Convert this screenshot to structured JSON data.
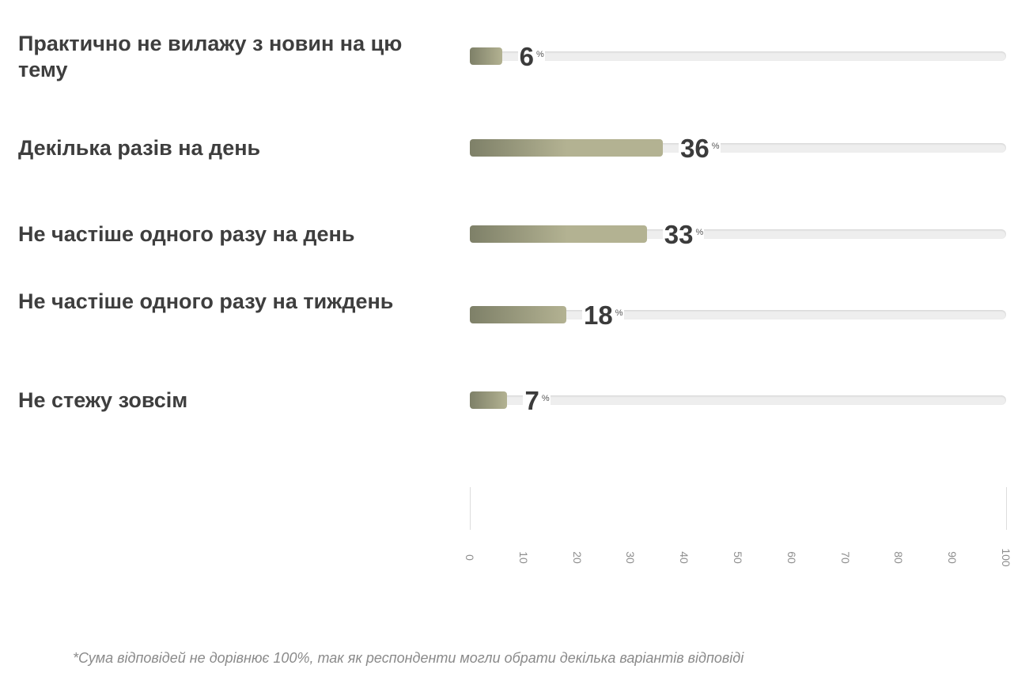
{
  "chart_data": {
    "type": "bar",
    "orientation": "horizontal",
    "categories": [
      "Практично не вилажу з новин на цю тему",
      "Декілька разів на день",
      "Не частіше одного разу на день",
      "Не частіше одного разу на тиждень",
      "Не стежу зовсім"
    ],
    "values": [
      6,
      36,
      33,
      18,
      7
    ],
    "unit": "%",
    "xlim": [
      0,
      100
    ],
    "xticks": [
      "0",
      "10",
      "20",
      "30",
      "40",
      "50",
      "60",
      "70",
      "80",
      "90",
      "100"
    ],
    "footnote": "*Сума відповідей не дорівнює 100%, так як респонденти могли обрати декілька варіантів відповіді"
  },
  "colors": {
    "bar_dark": "#7e8068",
    "bar_light": "#b3b292",
    "track": "#eeeeee",
    "text": "#3e3e3e",
    "tick_text": "#8e8e8e"
  }
}
